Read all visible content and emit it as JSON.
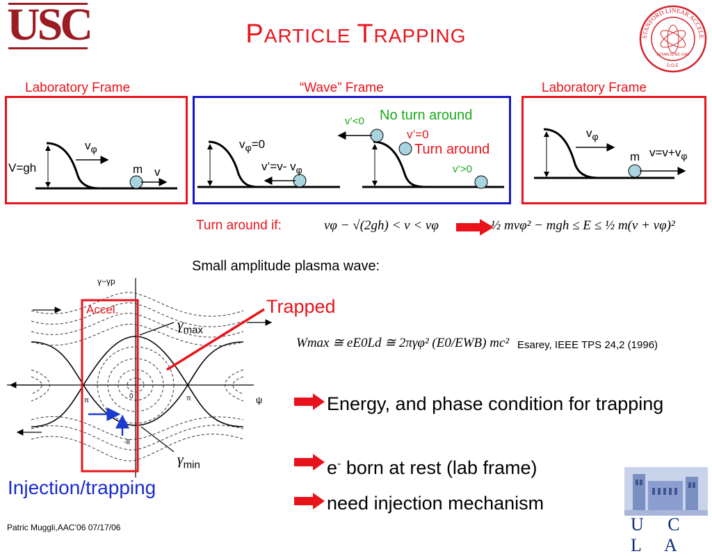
{
  "header": {
    "logo_left": "USC",
    "title_cap_p": "P",
    "title_rest_1": "ARTICLE ",
    "title_cap_t": "T",
    "title_rest_2": "RAPPING",
    "seal_text": "STANFORD LINEAR ACCELERATOR CENTER",
    "seal_established": "ESTABLISHED 1962",
    "seal_doe": "D.O.E."
  },
  "frames": {
    "left_label": "Laboratory Frame",
    "center_label": "“Wave” Frame",
    "right_label": "Laboratory Frame"
  },
  "left_panel": {
    "vphi": "v",
    "vphi_sub": "φ",
    "vgh": "V=gh",
    "m": "m",
    "v": "v"
  },
  "center_panel": {
    "vphi0": "v",
    "vphi0_sub": "φ",
    "vphi0_eq": "=0",
    "vprime": "v’=v- v",
    "vprime_sub": "φ",
    "vlt0": "v’<0",
    "no_turn": "No turn around",
    "v_eq0": "v’=0",
    "turn_around": "Turn around",
    "v_gt0": "v’>0"
  },
  "right_panel": {
    "vphi": "v",
    "vphi_sub": "φ",
    "m": "m",
    "vsum": "v=v+v",
    "vsum_sub": "φ"
  },
  "condition": {
    "label": "Turn around if:",
    "inequality": "vφ − √(2gh) < v < vφ",
    "energy": "½ mvφ² − mgh ≤ E ≤ ½ m(v + vφ)²"
  },
  "plasma": {
    "subtitle": "Small amplitude plasma wave:",
    "axis_y": "γ−γp",
    "axis_x": "ψ",
    "accel": "Accel.",
    "trapped": "Trapped",
    "gamma_max": "γ",
    "gamma_max_sub": "max",
    "gamma_min": "γ",
    "gamma_min_sub": "min",
    "tick_pi_left": "π",
    "tick_zero": "0",
    "tick_pi_right": "π",
    "tick_minus8": "-8",
    "injection": "Injection/trapping",
    "wmax_eq": "Wmax ≅ eE0Ld ≅ 2πγφ² (E0/EWB) mc²",
    "citation": "Esarey, IEEE TPS 24,2 (1996)"
  },
  "bullets": [
    "Energy, and phase condition for trapping",
    "born at rest (lab frame)",
    "need injection mechanism"
  ],
  "bullet_prefix_e": "e",
  "bullet_prefix_sup": "-",
  "footer": "Patric Muggli,AAC’06 07/17/06",
  "ucla_letters": "U C L A",
  "colors": {
    "accent_red": "#e8131a",
    "frame_blue": "#1616c8",
    "usc_red": "#9b1c22",
    "green": "#18a818",
    "ucla_blue": "#0b2c7a"
  }
}
